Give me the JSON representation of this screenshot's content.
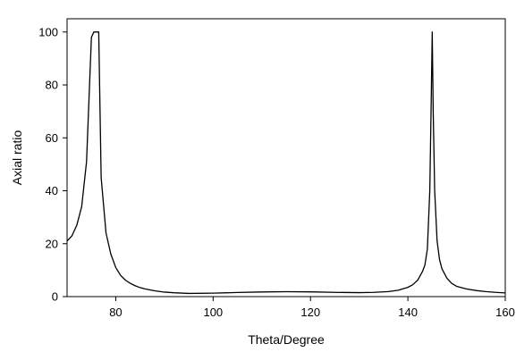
{
  "chart_data": {
    "type": "line",
    "title": "",
    "xlabel": "Theta/Degree",
    "ylabel": "Axial ratio",
    "xlim": [
      70,
      160
    ],
    "ylim": [
      0,
      105
    ],
    "xticks": [
      80,
      100,
      120,
      140,
      160
    ],
    "yticks": [
      0,
      20,
      40,
      60,
      80,
      100
    ],
    "grid": false,
    "legend": "none",
    "line_color": "#000000",
    "series": [
      {
        "x": [
          70,
          71,
          72,
          73,
          74,
          75,
          75.5,
          76,
          76.5,
          77,
          78,
          79,
          80,
          81,
          82,
          83,
          84,
          85,
          86,
          88,
          90,
          92,
          95,
          100,
          105,
          110,
          115,
          120,
          125,
          130,
          133,
          136,
          138,
          140,
          141,
          142,
          143,
          143.5,
          144,
          144.5,
          144.8,
          145,
          145.2,
          145.5,
          146,
          146.5,
          147,
          148,
          149,
          150,
          152,
          154,
          156,
          158,
          160
        ],
        "y": [
          21,
          23,
          27,
          34,
          51,
          98,
          100,
          100,
          100,
          45,
          24,
          16,
          11,
          8,
          6.2,
          5,
          4.1,
          3.4,
          2.9,
          2.2,
          1.7,
          1.45,
          1.2,
          1.3,
          1.55,
          1.75,
          1.85,
          1.8,
          1.6,
          1.5,
          1.6,
          1.9,
          2.4,
          3.5,
          4.5,
          6.2,
          9.5,
          12,
          18,
          40,
          75,
          100,
          70,
          40,
          21,
          14,
          10.5,
          7,
          5,
          3.9,
          2.9,
          2.3,
          1.9,
          1.6,
          1.4
        ]
      }
    ]
  }
}
